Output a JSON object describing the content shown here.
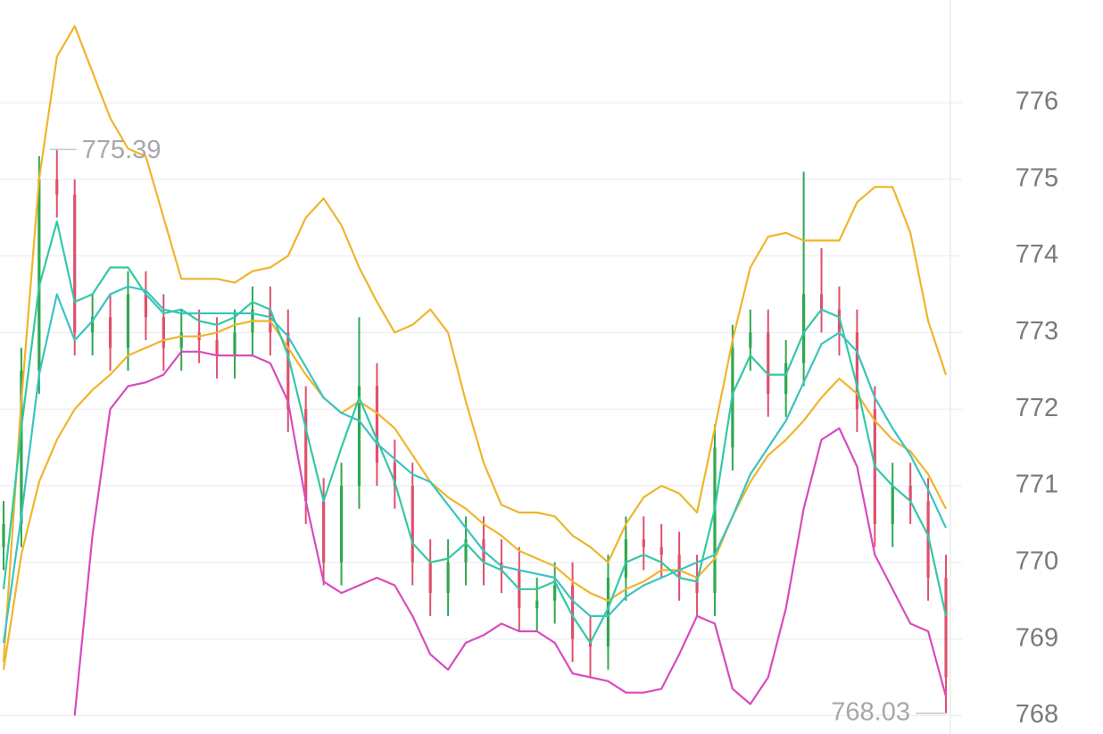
{
  "chart_data": {
    "type": "ohlc",
    "ylim": [
      767.76,
      777.34
    ],
    "yticks": [
      768,
      769,
      770,
      771,
      772,
      773,
      774,
      775,
      776
    ],
    "grid": true,
    "up_color": "#2fa84f",
    "down_color": "#e0506c",
    "open": [
      770.2,
      770.5,
      772.5,
      775.0,
      774.8,
      773.0,
      773.2,
      772.8,
      773.5,
      773.2,
      772.8,
      773.0,
      772.9,
      772.7,
      773.0,
      773.3,
      773.0,
      772.0,
      770.8,
      770.0,
      771.0,
      772.3,
      771.3,
      771.0,
      770.0,
      769.6,
      770.0,
      770.3,
      770.0,
      769.9,
      769.4,
      769.5,
      769.7,
      769.0,
      768.9,
      769.8,
      770.3,
      770.2,
      770.1,
      769.8,
      769.6,
      771.5,
      772.8,
      773.0,
      772.2,
      772.6,
      773.5,
      773.3,
      773.0,
      772.0,
      770.5,
      771.0,
      770.8,
      769.8
    ],
    "high": [
      770.8,
      772.8,
      775.3,
      775.39,
      775.0,
      773.5,
      773.5,
      773.8,
      773.8,
      773.5,
      773.3,
      773.3,
      773.2,
      773.3,
      773.6,
      773.6,
      773.3,
      772.3,
      771.1,
      771.3,
      773.2,
      772.6,
      771.6,
      771.3,
      770.3,
      770.3,
      770.6,
      770.6,
      770.3,
      770.2,
      769.8,
      770.0,
      770.0,
      769.3,
      770.1,
      770.6,
      770.6,
      770.5,
      770.4,
      770.1,
      771.8,
      773.1,
      773.3,
      773.3,
      772.9,
      775.1,
      774.1,
      773.6,
      773.3,
      772.3,
      771.3,
      771.3,
      771.1,
      770.1
    ],
    "low": [
      769.9,
      770.2,
      772.2,
      774.5,
      772.7,
      772.7,
      772.5,
      772.5,
      772.9,
      772.5,
      772.5,
      772.6,
      772.4,
      772.4,
      772.7,
      772.7,
      771.7,
      770.5,
      769.7,
      769.7,
      770.7,
      771.0,
      770.7,
      769.7,
      769.3,
      769.3,
      769.7,
      769.7,
      769.6,
      769.1,
      769.1,
      769.2,
      768.7,
      768.5,
      768.6,
      769.5,
      769.9,
      769.8,
      769.5,
      769.3,
      769.3,
      771.2,
      772.5,
      771.9,
      771.9,
      772.3,
      773.0,
      772.7,
      771.7,
      770.2,
      770.2,
      770.5,
      769.5,
      768.03
    ],
    "close": [
      770.5,
      772.5,
      775.0,
      774.8,
      773.0,
      773.2,
      772.8,
      773.5,
      773.2,
      772.8,
      773.0,
      772.9,
      772.7,
      773.0,
      773.3,
      773.0,
      772.0,
      770.8,
      770.0,
      771.0,
      772.3,
      771.3,
      771.0,
      770.0,
      769.6,
      770.0,
      770.3,
      770.0,
      769.9,
      769.4,
      769.5,
      769.7,
      769.0,
      768.9,
      769.8,
      770.3,
      770.2,
      770.1,
      769.8,
      769.6,
      771.5,
      772.8,
      773.0,
      772.2,
      772.6,
      773.5,
      773.3,
      773.0,
      772.0,
      770.5,
      771.0,
      770.8,
      769.8,
      768.5
    ],
    "lines": [
      {
        "color": "#efb52c",
        "values": [
          768.7,
          772.1,
          775.0,
          776.6,
          777.0,
          776.4,
          775.8,
          775.4,
          775.3,
          774.5,
          773.7,
          773.7,
          773.7,
          773.65,
          773.8,
          773.85,
          774.0,
          774.5,
          774.75,
          774.4,
          773.85,
          773.4,
          773.0,
          773.1,
          773.3,
          773.0,
          772.1,
          771.3,
          770.75,
          770.65,
          770.65,
          770.6,
          770.35,
          770.2,
          770.0,
          770.5,
          770.85,
          771.0,
          770.9,
          770.65,
          771.75,
          772.9,
          773.85,
          774.25,
          774.3,
          774.2,
          774.2,
          774.2,
          774.7,
          774.9,
          774.9,
          774.3,
          773.15,
          772.45
        ]
      },
      {
        "color": "#efb52c",
        "values": [
          768.6,
          770.1,
          771.05,
          771.6,
          772.0,
          772.25,
          772.45,
          772.7,
          772.8,
          772.9,
          772.95,
          772.95,
          773.0,
          773.1,
          773.15,
          773.15,
          772.8,
          772.45,
          772.15,
          771.95,
          772.1,
          771.95,
          771.75,
          771.4,
          771.05,
          770.85,
          770.7,
          770.5,
          770.35,
          770.15,
          770.05,
          769.95,
          769.75,
          769.6,
          769.5,
          769.65,
          769.75,
          769.9,
          769.9,
          769.8,
          770.05,
          770.6,
          771.05,
          771.4,
          771.6,
          771.85,
          772.15,
          772.4,
          772.2,
          771.85,
          771.6,
          771.45,
          771.15,
          770.7
        ]
      },
      {
        "color": "#d84bbd",
        "values": [
          null,
          null,
          null,
          null,
          768.0,
          770.35,
          772.0,
          772.3,
          772.35,
          772.45,
          772.75,
          772.75,
          772.7,
          772.7,
          772.7,
          772.6,
          772.1,
          770.8,
          769.75,
          769.6,
          769.7,
          769.8,
          769.7,
          769.3,
          768.8,
          768.6,
          768.95,
          769.05,
          769.2,
          769.1,
          769.1,
          768.95,
          768.55,
          768.5,
          768.45,
          768.3,
          768.3,
          768.35,
          768.8,
          769.3,
          769.2,
          768.35,
          768.15,
          768.5,
          769.4,
          770.7,
          771.6,
          771.75,
          771.25,
          770.1,
          769.65,
          769.2,
          769.1,
          768.25
        ]
      },
      {
        "color": "#33c8a4",
        "values": [
          769.65,
          771.75,
          773.6,
          774.45,
          773.4,
          773.5,
          773.85,
          773.85,
          773.5,
          773.25,
          773.3,
          773.15,
          773.1,
          773.2,
          773.4,
          773.3,
          772.7,
          771.75,
          770.8,
          771.5,
          772.15,
          771.6,
          771.05,
          770.25,
          770.0,
          770.05,
          770.25,
          770.0,
          769.9,
          769.65,
          769.65,
          769.75,
          769.3,
          768.95,
          769.4,
          770.0,
          770.1,
          770.0,
          769.8,
          769.75,
          770.7,
          772.2,
          772.7,
          772.45,
          772.45,
          773.0,
          773.3,
          773.2,
          772.3,
          771.25,
          771.0,
          770.8,
          770.35,
          769.3
        ]
      },
      {
        "color": "#3bc3c2",
        "values": [
          768.95,
          770.6,
          772.45,
          773.5,
          772.9,
          773.15,
          773.5,
          773.6,
          773.55,
          773.3,
          773.25,
          773.25,
          773.25,
          773.25,
          773.25,
          773.2,
          772.95,
          772.55,
          772.15,
          771.95,
          771.85,
          771.55,
          771.35,
          771.15,
          771.05,
          770.75,
          770.45,
          770.15,
          769.95,
          769.9,
          769.85,
          769.8,
          769.5,
          769.3,
          769.3,
          769.55,
          769.7,
          769.8,
          769.9,
          770.0,
          770.1,
          770.6,
          771.15,
          771.5,
          771.85,
          772.35,
          772.85,
          773.0,
          772.75,
          772.15,
          771.75,
          771.4,
          770.95,
          770.45
        ]
      }
    ],
    "high_label": "775.39",
    "low_label": "768.03"
  }
}
